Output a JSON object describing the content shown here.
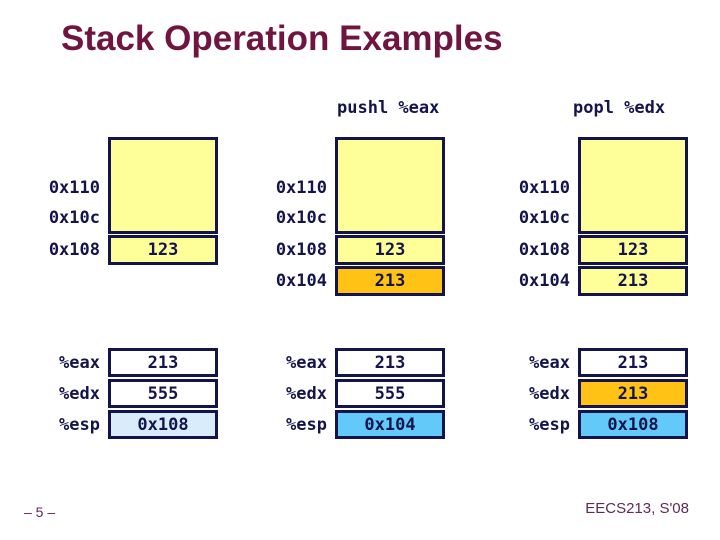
{
  "slide": {
    "title": "Stack Operation Examples",
    "page_number": "– 5 –",
    "course_footer": "EECS213, S'08"
  },
  "instructions": [
    {
      "label": "pushl %eax"
    },
    {
      "label": "popl %edx"
    }
  ],
  "colors": {
    "title_maroon": "#701540",
    "navy": "#14144d",
    "yellow": "#ffff99",
    "gold": "#ffc215",
    "light_blue": "#d9ecfb",
    "sky_blue": "#63c9f8",
    "footer_purple": "#5c2b57",
    "white": "#ffffff"
  },
  "stacks": [
    {
      "id": "before-push",
      "addresses": [
        "0x110",
        "0x10c",
        "0x108"
      ],
      "rows": [
        {
          "value": "123",
          "fill": "yellow"
        }
      ],
      "registers": [
        {
          "name": "%eax",
          "value": "213",
          "fill": "white"
        },
        {
          "name": "%edx",
          "value": "555",
          "fill": "white"
        },
        {
          "name": "%esp",
          "value": "0x108",
          "fill": "light_blue"
        }
      ]
    },
    {
      "id": "after-pushl-eax",
      "addresses": [
        "0x110",
        "0x10c",
        "0x108",
        "0x104"
      ],
      "rows": [
        {
          "value": "123",
          "fill": "yellow"
        },
        {
          "value": "213",
          "fill": "gold"
        }
      ],
      "registers": [
        {
          "name": "%eax",
          "value": "213",
          "fill": "white"
        },
        {
          "name": "%edx",
          "value": "555",
          "fill": "white"
        },
        {
          "name": "%esp",
          "value": "0x104",
          "fill": "sky_blue"
        }
      ]
    },
    {
      "id": "after-popl-edx",
      "addresses": [
        "0x110",
        "0x10c",
        "0x108",
        "0x104"
      ],
      "rows": [
        {
          "value": "123",
          "fill": "yellow"
        },
        {
          "value": "213",
          "fill": "yellow"
        }
      ],
      "registers": [
        {
          "name": "%eax",
          "value": "213",
          "fill": "white"
        },
        {
          "name": "%edx",
          "value": "213",
          "fill": "gold"
        },
        {
          "name": "%esp",
          "value": "0x108",
          "fill": "sky_blue"
        }
      ]
    }
  ]
}
